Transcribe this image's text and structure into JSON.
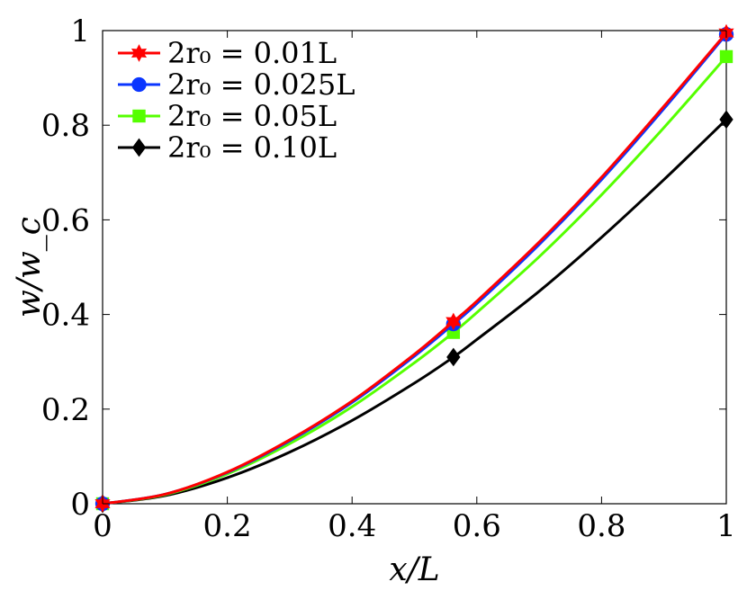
{
  "chart_data": {
    "type": "line",
    "title": "",
    "xlabel": "x/L",
    "ylabel": "w/w_c",
    "xlim": [
      0,
      1
    ],
    "ylim": [
      0,
      1
    ],
    "xticks": [
      0,
      0.2,
      0.4,
      0.6,
      0.8,
      1
    ],
    "xtick_labels": [
      "0",
      "0.2",
      "0.4",
      "0.6",
      "0.8",
      "1"
    ],
    "yticks": [
      0,
      0.2,
      0.4,
      0.6,
      0.8,
      1
    ],
    "ytick_labels": [
      "0",
      "0.2",
      "0.4",
      "0.6",
      "0.8",
      "1"
    ],
    "grid": false,
    "legend_position": "top-left",
    "series": [
      {
        "name": "2r₀ = 0.01L",
        "color": "#ff0000",
        "marker": "hexagram",
        "x": [
          0,
          0.1,
          0.2,
          0.3,
          0.4,
          0.5,
          0.5625,
          0.6,
          0.7,
          0.8,
          0.9,
          1.0
        ],
        "y": [
          0,
          0.02,
          0.067,
          0.135,
          0.217,
          0.316,
          0.385,
          0.428,
          0.553,
          0.69,
          0.84,
          0.995
        ],
        "marker_x": [
          0,
          0.5625,
          1.0
        ],
        "marker_y": [
          0,
          0.385,
          0.995
        ]
      },
      {
        "name": "2r₀ = 0.025L",
        "color": "#0a35ff",
        "marker": "circle",
        "x": [
          0,
          0.1,
          0.2,
          0.3,
          0.4,
          0.5,
          0.5625,
          0.6,
          0.7,
          0.8,
          0.9,
          1.0
        ],
        "y": [
          0,
          0.02,
          0.066,
          0.133,
          0.214,
          0.312,
          0.38,
          0.423,
          0.548,
          0.685,
          0.835,
          0.992
        ],
        "marker_x": [
          0,
          0.5625,
          1.0
        ],
        "marker_y": [
          0,
          0.38,
          0.992
        ]
      },
      {
        "name": "2r₀ = 0.05L",
        "color": "#55ff00",
        "marker": "square",
        "x": [
          0,
          0.1,
          0.2,
          0.3,
          0.4,
          0.5,
          0.5625,
          0.6,
          0.7,
          0.8,
          0.9,
          1.0
        ],
        "y": [
          0,
          0.019,
          0.063,
          0.127,
          0.205,
          0.298,
          0.362,
          0.404,
          0.522,
          0.653,
          0.795,
          0.945
        ],
        "marker_x": [
          0,
          0.5625,
          1.0
        ],
        "marker_y": [
          0,
          0.362,
          0.945
        ]
      },
      {
        "name": "2r₀ = 0.10L",
        "color": "#000000",
        "marker": "diamond",
        "x": [
          0,
          0.1,
          0.2,
          0.3,
          0.4,
          0.5,
          0.5625,
          0.6,
          0.7,
          0.8,
          0.9,
          1.0
        ],
        "y": [
          0,
          0.017,
          0.055,
          0.109,
          0.176,
          0.255,
          0.31,
          0.347,
          0.449,
          0.563,
          0.685,
          0.812
        ],
        "marker_x": [
          0,
          0.5625,
          1.0
        ],
        "marker_y": [
          0,
          0.31,
          0.812
        ]
      }
    ]
  }
}
